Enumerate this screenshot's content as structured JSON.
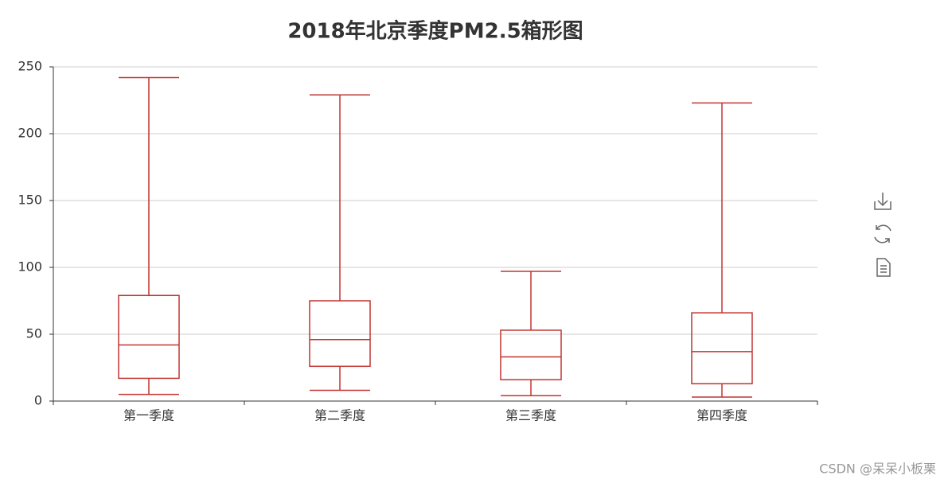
{
  "chart_data": {
    "type": "boxplot",
    "title": "2018年北京季度PM2.5箱形图",
    "categories": [
      "第一季度",
      "第二季度",
      "第三季度",
      "第四季度"
    ],
    "series": [
      {
        "color": "#c23531",
        "values": [
          [
            5,
            17,
            42,
            79,
            242
          ],
          [
            8,
            26,
            46,
            75,
            229
          ],
          [
            4,
            16,
            33,
            53,
            97
          ],
          [
            3,
            13,
            37,
            66,
            223
          ]
        ]
      }
    ],
    "ylim": [
      0,
      250
    ],
    "yticks": [
      0,
      50,
      100,
      150,
      200,
      250
    ],
    "grid": true
  },
  "watermark": "CSDN @呆呆小板栗"
}
